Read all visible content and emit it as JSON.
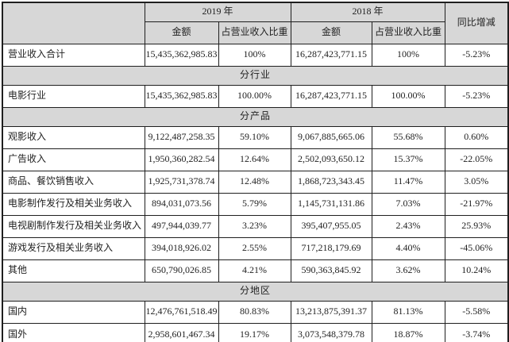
{
  "table": {
    "header": {
      "corner": "",
      "year_2019": "2019 年",
      "year_2018": "2018 年",
      "amount_2019": "金额",
      "proportion_2019": "占营业收入比重",
      "amount_2018": "金额",
      "proportion_2018": "占营业收入比重",
      "yoy": "同比增减"
    },
    "rows": [
      {
        "type": "data",
        "label": "营业收入合计",
        "a2019": "15,435,362,985.83",
        "p2019": "100%",
        "a2018": "16,287,423,771.15",
        "p2018": "100%",
        "yoy": "-5.23%"
      },
      {
        "type": "section",
        "label": "分行业"
      },
      {
        "type": "data",
        "label": "电影行业",
        "a2019": "15,435,362,985.83",
        "p2019": "100.00%",
        "a2018": "16,287,423,771.15",
        "p2018": "100.00%",
        "yoy": "-5.23%"
      },
      {
        "type": "section",
        "label": "分产品"
      },
      {
        "type": "data",
        "label": "观影收入",
        "a2019": "9,122,487,258.35",
        "p2019": "59.10%",
        "a2018": "9,067,885,665.06",
        "p2018": "55.68%",
        "yoy": "0.60%"
      },
      {
        "type": "data",
        "label": "广告收入",
        "a2019": "1,950,360,282.54",
        "p2019": "12.64%",
        "a2018": "2,502,093,650.12",
        "p2018": "15.37%",
        "yoy": "-22.05%"
      },
      {
        "type": "data",
        "label": "商品、餐饮销售收入",
        "a2019": "1,925,731,378.74",
        "p2019": "12.48%",
        "a2018": "1,868,723,343.45",
        "p2018": "11.47%",
        "yoy": "3.05%"
      },
      {
        "type": "data",
        "label": "电影制作发行及相关业务收入",
        "a2019": "894,031,073.56",
        "p2019": "5.79%",
        "a2018": "1,145,731,131.86",
        "p2018": "7.03%",
        "yoy": "-21.97%"
      },
      {
        "type": "data",
        "label": "电视剧制作发行及相关业务收入",
        "a2019": "497,944,039.77",
        "p2019": "3.23%",
        "a2018": "395,407,955.05",
        "p2018": "2.43%",
        "yoy": "25.93%"
      },
      {
        "type": "data",
        "label": "游戏发行及相关业务收入",
        "a2019": "394,018,926.02",
        "p2019": "2.55%",
        "a2018": "717,218,179.69",
        "p2018": "4.40%",
        "yoy": "-45.06%"
      },
      {
        "type": "data",
        "label": "其他",
        "a2019": "650,790,026.85",
        "p2019": "4.21%",
        "a2018": "590,363,845.92",
        "p2018": "3.62%",
        "yoy": "10.24%"
      },
      {
        "type": "section",
        "label": "分地区"
      },
      {
        "type": "data",
        "label": "国内",
        "a2019": "12,476,761,518.49",
        "p2019": "80.83%",
        "a2018": "13,213,875,391.37",
        "p2018": "81.13%",
        "yoy": "-5.58%"
      },
      {
        "type": "data",
        "tall": true,
        "label": "国外",
        "a2019": "2,958,601,467.34",
        "p2019": "19.17%",
        "a2018": "3,073,548,379.78",
        "p2018": "18.87%",
        "yoy": "-3.74%"
      }
    ],
    "colors": {
      "header_bg": "#d7d7d7",
      "section_bg": "#d7d7d7",
      "border": "#1f1f1f",
      "text": "#222222"
    }
  }
}
